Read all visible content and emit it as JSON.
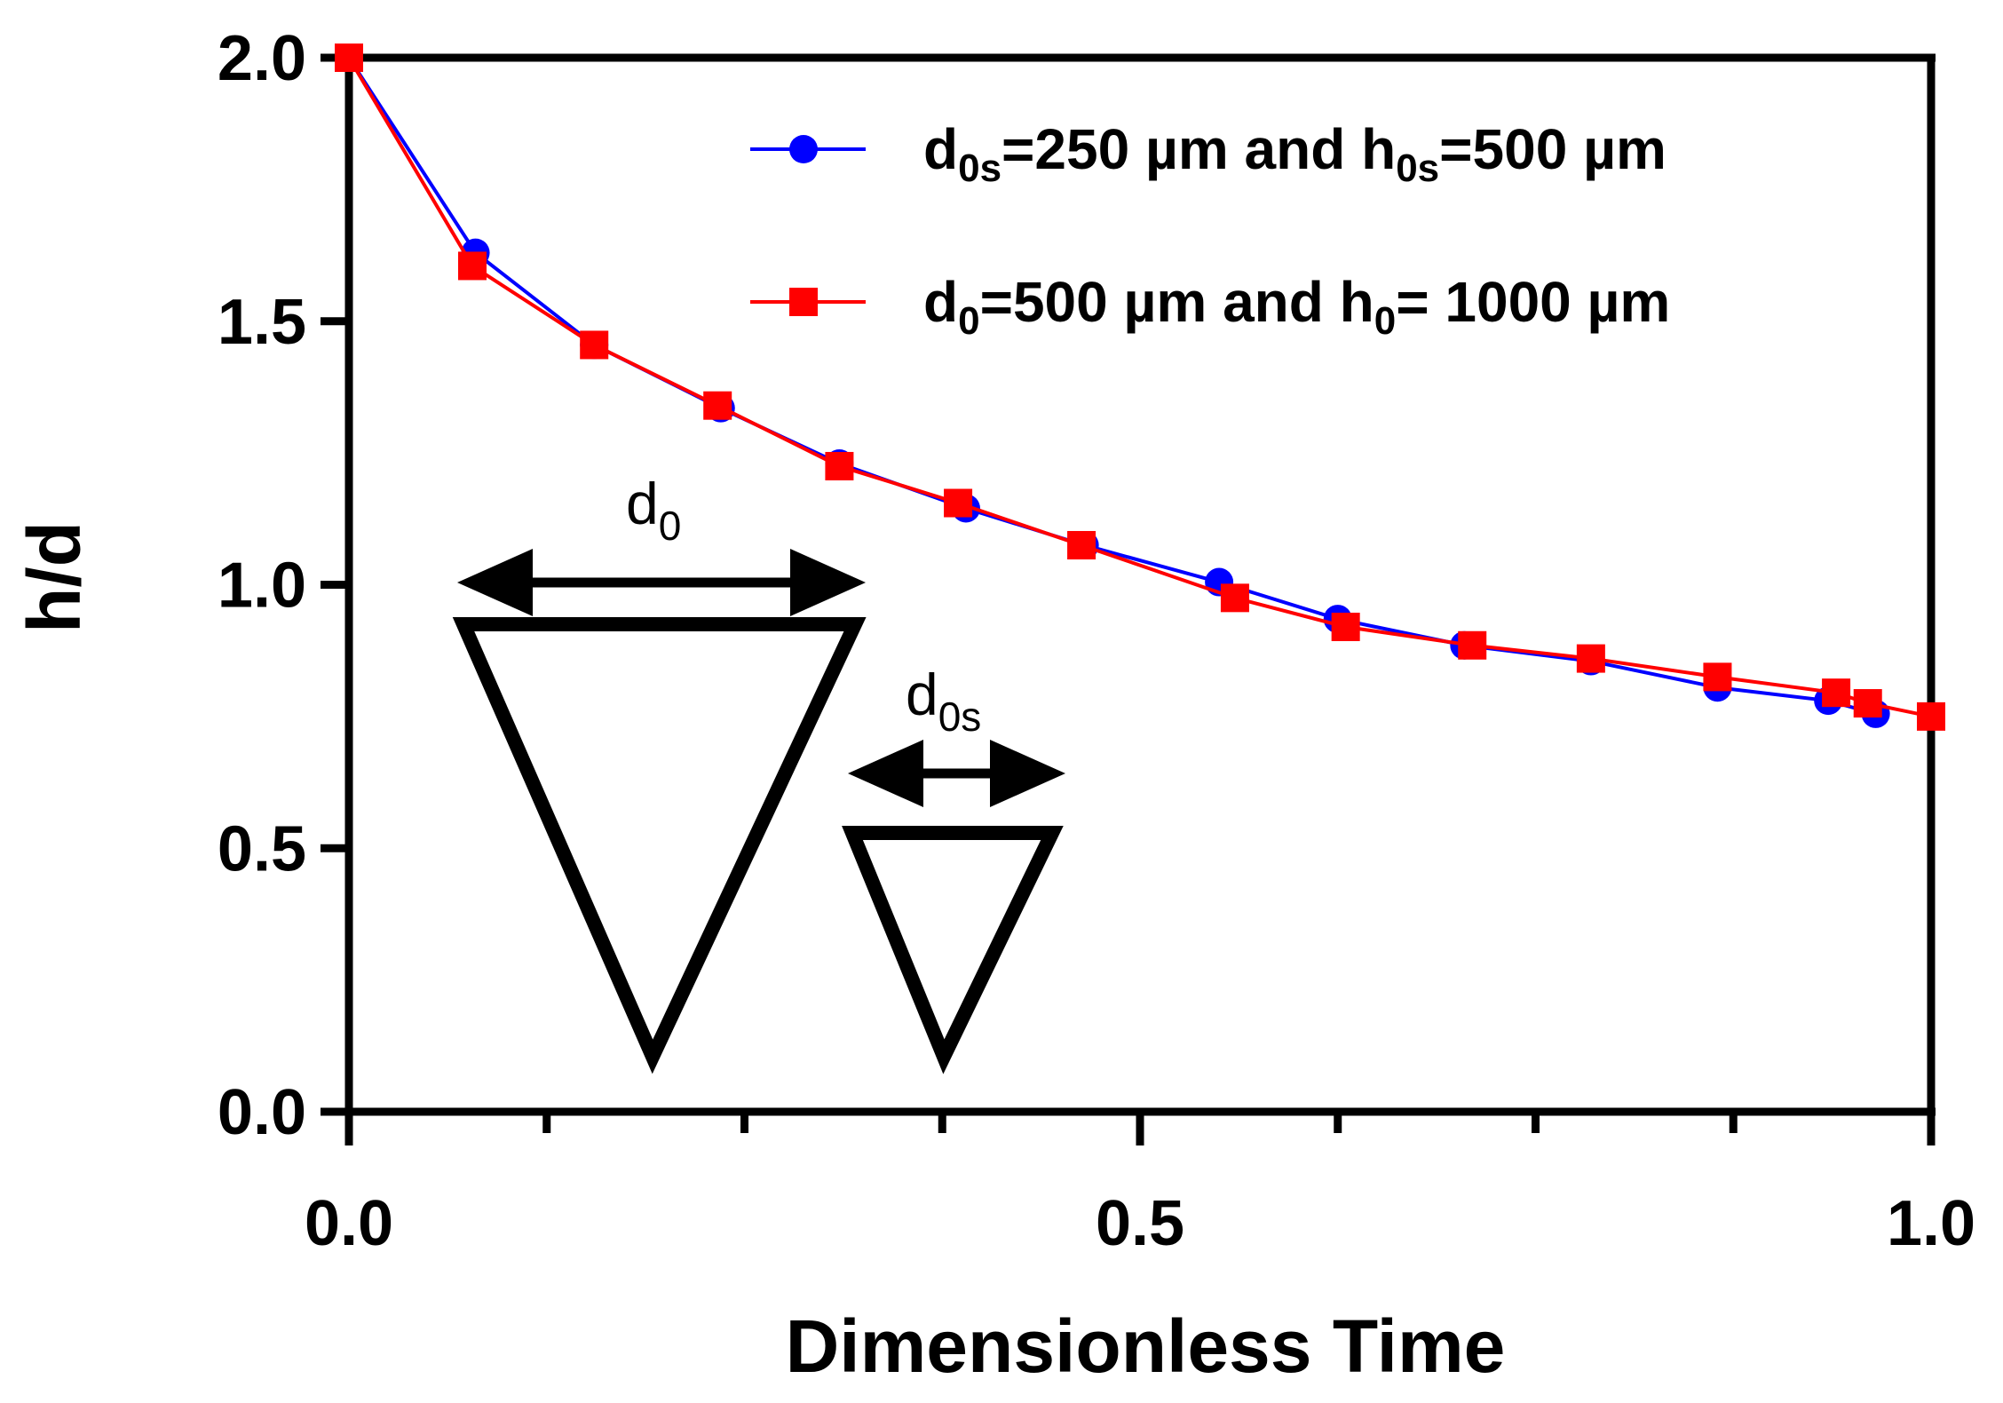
{
  "chart_data": {
    "type": "line",
    "title": "",
    "xlabel": "Dimensionless Time",
    "ylabel": "h/d",
    "xlim": [
      0,
      1
    ],
    "ylim": [
      0,
      2
    ],
    "xticks": [
      0.0,
      0.5,
      1.0
    ],
    "xtick_labels": [
      "0.0",
      "0.5",
      "1.0"
    ],
    "yticks": [
      0.0,
      0.5,
      1.0,
      1.5,
      2.0
    ],
    "ytick_labels": [
      "0.0",
      "0.5",
      "1.0",
      "1.5",
      "2.0"
    ],
    "x_minor_ticks": [
      0.125,
      0.25,
      0.375,
      0.625,
      0.75,
      0.875
    ],
    "legend_position": "top-right",
    "series": [
      {
        "name": "d0s=250 µm and h0s=500 µm",
        "legend_base": "d",
        "legend_sub1": "0s",
        "legend_mid": "=250 µm and h",
        "legend_sub2": "0s",
        "legend_end": "=500 µm",
        "color": "#0000ff",
        "marker": "circle",
        "x": [
          0.0,
          0.08,
          0.155,
          0.235,
          0.31,
          0.39,
          0.465,
          0.55,
          0.625,
          0.705,
          0.785,
          0.865,
          0.935,
          0.965
        ],
        "y": [
          2.0,
          1.63,
          1.455,
          1.335,
          1.23,
          1.145,
          1.075,
          1.005,
          0.935,
          0.885,
          0.855,
          0.805,
          0.78,
          0.755
        ]
      },
      {
        "name": "d0=500 µm and h0= 1000 µm",
        "legend_base": "d",
        "legend_sub1": "0",
        "legend_mid": "=500 µm and h",
        "legend_sub2": "0",
        "legend_end": "= 1000 µm",
        "color": "#ff0000",
        "marker": "square",
        "x": [
          0.0,
          0.078,
          0.155,
          0.233,
          0.31,
          0.385,
          0.463,
          0.56,
          0.63,
          0.71,
          0.785,
          0.865,
          0.94,
          0.96,
          1.0
        ],
        "y": [
          2.0,
          1.605,
          1.455,
          1.34,
          1.225,
          1.155,
          1.075,
          0.975,
          0.92,
          0.885,
          0.86,
          0.825,
          0.795,
          0.775,
          0.75
        ]
      }
    ],
    "annotations": {
      "large_label_base": "d",
      "large_label_sub": "0",
      "small_label_base": "d",
      "small_label_sub": "0s"
    }
  }
}
